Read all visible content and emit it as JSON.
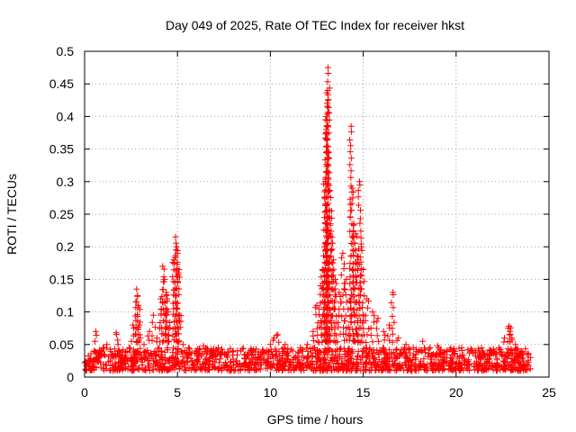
{
  "chart_data": {
    "type": "scatter",
    "title": "Day 049 of 2025, Rate Of TEC Index for receiver hkst",
    "xlabel": "GPS time / hours",
    "ylabel": "ROTI / TECUs",
    "xlim": [
      0,
      25
    ],
    "ylim": [
      0,
      0.5
    ],
    "grid": true,
    "xticks": [
      0,
      5,
      10,
      15,
      20,
      25
    ],
    "xtick_labels": [
      "0",
      "5",
      "10",
      "15",
      "20",
      "25"
    ],
    "yticks": [
      0,
      0.05,
      0.1,
      0.15,
      0.2,
      0.25,
      0.3,
      0.35,
      0.4,
      0.45,
      0.5
    ],
    "ytick_labels": [
      "0",
      "0.05",
      "0.1",
      "0.15",
      "0.2",
      "0.25",
      "0.3",
      "0.35",
      "0.4",
      "0.45",
      "0.5"
    ],
    "marker": "+",
    "color": "#ff0000",
    "baseline": {
      "x_range": [
        0,
        24
      ],
      "typical_range": [
        0.01,
        0.045
      ]
    },
    "series": [
      {
        "name": "ROTI",
        "x": [
          0.1,
          0.3,
          0.5,
          0.6,
          0.8,
          1.0,
          1.2,
          1.5,
          1.7,
          1.8,
          2.0,
          2.2,
          2.4,
          2.6,
          2.8,
          2.85,
          2.9,
          2.95,
          3.0,
          3.2,
          3.5,
          3.7,
          3.9,
          4.1,
          4.2,
          4.3,
          4.4,
          4.45,
          4.5,
          4.6,
          4.8,
          4.9,
          4.95,
          5.0,
          5.05,
          5.1,
          5.3,
          5.6,
          6.0,
          6.4,
          6.8,
          7.2,
          7.6,
          8.0,
          8.4,
          8.8,
          9.2,
          9.6,
          10.0,
          10.2,
          10.4,
          10.8,
          11.2,
          11.6,
          12.0,
          12.3,
          12.5,
          12.7,
          12.8,
          12.9,
          12.95,
          13.0,
          13.02,
          13.05,
          13.08,
          13.1,
          13.15,
          13.2,
          13.3,
          13.4,
          13.5,
          13.7,
          13.9,
          14.1,
          14.3,
          14.35,
          14.4,
          14.5,
          14.6,
          14.7,
          14.8,
          14.9,
          15.0,
          15.2,
          15.5,
          15.8,
          16.1,
          16.4,
          16.6,
          16.9,
          17.3,
          17.7,
          18.2,
          18.6,
          19.0,
          19.5,
          19.9,
          20.3,
          20.8,
          21.3,
          21.8,
          22.3,
          22.6,
          22.8,
          22.85,
          22.9,
          23.0,
          23.2,
          23.5,
          23.8,
          24.0
        ],
        "y": [
          0.018,
          0.025,
          0.04,
          0.07,
          0.03,
          0.045,
          0.05,
          0.035,
          0.068,
          0.05,
          0.03,
          0.025,
          0.045,
          0.08,
          0.135,
          0.125,
          0.11,
          0.08,
          0.06,
          0.05,
          0.07,
          0.095,
          0.06,
          0.12,
          0.17,
          0.15,
          0.13,
          0.12,
          0.1,
          0.075,
          0.18,
          0.215,
          0.2,
          0.19,
          0.16,
          0.095,
          0.05,
          0.045,
          0.04,
          0.048,
          0.04,
          0.045,
          0.035,
          0.04,
          0.04,
          0.035,
          0.03,
          0.038,
          0.05,
          0.06,
          0.065,
          0.05,
          0.04,
          0.045,
          0.05,
          0.07,
          0.11,
          0.14,
          0.165,
          0.2,
          0.3,
          0.38,
          0.4,
          0.42,
          0.44,
          0.475,
          0.345,
          0.22,
          0.255,
          0.18,
          0.15,
          0.13,
          0.19,
          0.15,
          0.12,
          0.385,
          0.29,
          0.235,
          0.22,
          0.18,
          0.3,
          0.2,
          0.165,
          0.12,
          0.1,
          0.09,
          0.07,
          0.08,
          0.13,
          0.06,
          0.05,
          0.045,
          0.055,
          0.045,
          0.048,
          0.04,
          0.035,
          0.045,
          0.04,
          0.035,
          0.04,
          0.045,
          0.06,
          0.075,
          0.078,
          0.07,
          0.06,
          0.05,
          0.04,
          0.035,
          0.03
        ]
      }
    ]
  }
}
